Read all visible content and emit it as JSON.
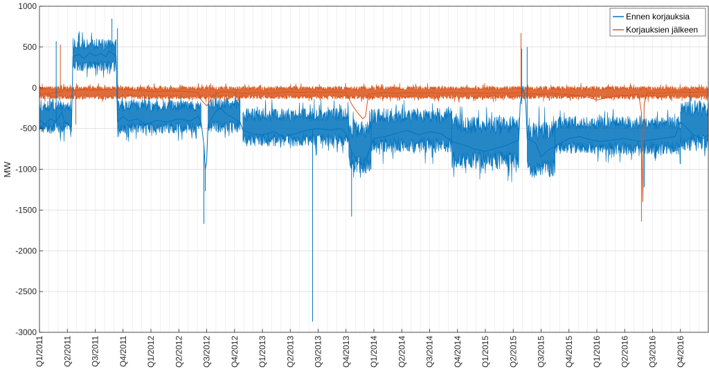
{
  "chart_data": {
    "type": "line",
    "title": "",
    "xlabel": "",
    "ylabel": "MW",
    "ylim": [
      -3000,
      1000
    ],
    "yticks": [
      1000,
      500,
      0,
      -500,
      -1000,
      -1500,
      -2000,
      -2500,
      -3000
    ],
    "xlim": [
      0,
      24
    ],
    "xtick_labels": [
      "Q1/2011",
      "Q2/2011",
      "Q3/2011",
      "Q4/2011",
      "Q1/2012",
      "Q2/2012",
      "Q3/2012",
      "Q4/2012",
      "Q1/2013",
      "Q2/2013",
      "Q3/2013",
      "Q4/2013",
      "Q1/2014",
      "Q2/2014",
      "Q3/2014",
      "Q4/2014",
      "Q1/2015",
      "Q2/2015",
      "Q3/2015",
      "Q4/2015",
      "Q1/2016",
      "Q2/2016",
      "Q3/2016",
      "Q4/2016"
    ],
    "grid": true,
    "legend_position": "top-right",
    "series": [
      {
        "name": "Ennen korjauksia",
        "color": "#0072BD",
        "points": [
          [
            0.0,
            -400
          ],
          [
            0.2,
            -450
          ],
          [
            0.4,
            -380
          ],
          [
            0.6,
            -420
          ],
          [
            0.8,
            -300
          ],
          [
            0.9,
            -420
          ],
          [
            1.15,
            -480
          ],
          [
            1.2,
            380
          ],
          [
            1.4,
            410
          ],
          [
            1.6,
            360
          ],
          [
            1.8,
            430
          ],
          [
            2.0,
            390
          ],
          [
            2.2,
            420
          ],
          [
            2.4,
            380
          ],
          [
            2.5,
            450
          ],
          [
            2.7,
            400
          ],
          [
            2.75,
            390
          ],
          [
            2.8,
            -420
          ],
          [
            3.0,
            -350
          ],
          [
            3.2,
            -410
          ],
          [
            3.5,
            -380
          ],
          [
            3.8,
            -450
          ],
          [
            4.2,
            -400
          ],
          [
            4.6,
            -420
          ],
          [
            5.0,
            -380
          ],
          [
            5.4,
            -410
          ],
          [
            5.7,
            -350
          ],
          [
            5.8,
            -420
          ],
          [
            5.9,
            -700
          ],
          [
            5.95,
            -1000
          ],
          [
            6.0,
            -900
          ],
          [
            6.05,
            -450
          ],
          [
            6.3,
            -300
          ],
          [
            6.5,
            -250
          ],
          [
            6.7,
            -320
          ],
          [
            7.0,
            -380
          ],
          [
            7.2,
            -420
          ],
          [
            7.3,
            -520
          ],
          [
            7.6,
            -560
          ],
          [
            8.0,
            -580
          ],
          [
            8.4,
            -540
          ],
          [
            8.8,
            -600
          ],
          [
            9.2,
            -560
          ],
          [
            9.6,
            -520
          ],
          [
            10.0,
            -500
          ],
          [
            10.4,
            -520
          ],
          [
            10.8,
            -500
          ],
          [
            11.0,
            -560
          ],
          [
            11.2,
            -780
          ],
          [
            11.4,
            -900
          ],
          [
            11.6,
            -950
          ],
          [
            11.8,
            -800
          ],
          [
            12.0,
            -620
          ],
          [
            12.4,
            -600
          ],
          [
            12.8,
            -560
          ],
          [
            13.2,
            -520
          ],
          [
            13.6,
            -580
          ],
          [
            14.0,
            -540
          ],
          [
            14.4,
            -560
          ],
          [
            14.8,
            -660
          ],
          [
            15.2,
            -700
          ],
          [
            15.6,
            -750
          ],
          [
            16.0,
            -780
          ],
          [
            16.4,
            -740
          ],
          [
            16.8,
            -700
          ],
          [
            17.2,
            -640
          ],
          [
            17.25,
            -200
          ],
          [
            17.35,
            20
          ],
          [
            17.45,
            -200
          ],
          [
            17.5,
            -620
          ],
          [
            17.8,
            -680
          ],
          [
            18.0,
            -850
          ],
          [
            18.2,
            -780
          ],
          [
            18.6,
            -700
          ],
          [
            19.0,
            -620
          ],
          [
            19.4,
            -600
          ],
          [
            19.8,
            -640
          ],
          [
            20.1,
            -660
          ],
          [
            20.6,
            -640
          ],
          [
            21.0,
            -620
          ],
          [
            21.5,
            -660
          ],
          [
            21.9,
            -640
          ],
          [
            22.4,
            -620
          ],
          [
            22.8,
            -600
          ],
          [
            23.0,
            -420
          ],
          [
            23.2,
            -480
          ],
          [
            23.4,
            -560
          ],
          [
            23.6,
            -600
          ],
          [
            23.8,
            -620
          ],
          [
            24.0,
            -580
          ]
        ]
      },
      {
        "name": "Korjauksien jälkeen",
        "color": "#D95319",
        "points": [
          [
            0.0,
            -80
          ],
          [
            0.3,
            -70
          ],
          [
            0.6,
            -60
          ],
          [
            0.8,
            -50
          ],
          [
            0.9,
            0
          ],
          [
            1.0,
            -40
          ],
          [
            1.2,
            -30
          ],
          [
            1.6,
            -25
          ],
          [
            2.0,
            -30
          ],
          [
            2.4,
            -20
          ],
          [
            2.8,
            -10
          ],
          [
            3.0,
            -20
          ],
          [
            3.4,
            -30
          ],
          [
            3.8,
            -40
          ],
          [
            4.2,
            -50
          ],
          [
            4.6,
            -40
          ],
          [
            5.0,
            -45
          ],
          [
            5.4,
            -50
          ],
          [
            5.7,
            -60
          ],
          [
            5.8,
            -150
          ],
          [
            6.0,
            -220
          ],
          [
            6.1,
            -180
          ],
          [
            6.2,
            -100
          ],
          [
            6.4,
            -60
          ],
          [
            6.6,
            -50
          ],
          [
            7.0,
            -60
          ],
          [
            7.4,
            -70
          ],
          [
            7.8,
            -60
          ],
          [
            8.2,
            -70
          ],
          [
            8.6,
            -60
          ],
          [
            9.0,
            -50
          ],
          [
            9.4,
            -60
          ],
          [
            9.8,
            -50
          ],
          [
            10.2,
            -60
          ],
          [
            10.6,
            -50
          ],
          [
            11.0,
            -60
          ],
          [
            11.2,
            -200
          ],
          [
            11.4,
            -300
          ],
          [
            11.6,
            -380
          ],
          [
            11.7,
            -350
          ],
          [
            11.8,
            -80
          ],
          [
            12.0,
            -70
          ],
          [
            12.4,
            -60
          ],
          [
            12.8,
            -70
          ],
          [
            13.2,
            -60
          ],
          [
            13.6,
            -70
          ],
          [
            14.0,
            -60
          ],
          [
            14.4,
            -70
          ],
          [
            14.8,
            -60
          ],
          [
            15.2,
            -70
          ],
          [
            15.6,
            -60
          ],
          [
            16.0,
            -70
          ],
          [
            16.4,
            -60
          ],
          [
            16.8,
            -70
          ],
          [
            17.2,
            -60
          ],
          [
            17.5,
            -70
          ],
          [
            18.0,
            -80
          ],
          [
            18.4,
            -70
          ],
          [
            18.8,
            -80
          ],
          [
            19.2,
            -90
          ],
          [
            19.6,
            -110
          ],
          [
            20.0,
            -150
          ],
          [
            20.4,
            -120
          ],
          [
            20.8,
            -100
          ],
          [
            21.2,
            -90
          ],
          [
            21.5,
            -80
          ],
          [
            21.6,
            -300
          ],
          [
            21.65,
            -1400
          ],
          [
            21.7,
            -200
          ],
          [
            21.8,
            -60
          ],
          [
            22.2,
            -70
          ],
          [
            22.6,
            -60
          ],
          [
            23.0,
            -50
          ],
          [
            23.4,
            -60
          ],
          [
            23.8,
            -50
          ],
          [
            24.0,
            -60
          ]
        ]
      }
    ],
    "spikes": [
      {
        "series": 0,
        "x": 0.6,
        "y": 570
      },
      {
        "series": 0,
        "x": 2.6,
        "y": 850
      },
      {
        "series": 0,
        "x": 2.8,
        "y": 730
      },
      {
        "series": 0,
        "x": 5.9,
        "y": -1670
      },
      {
        "series": 0,
        "x": 5.95,
        "y": -1270
      },
      {
        "series": 0,
        "x": 9.8,
        "y": -2870
      },
      {
        "series": 0,
        "x": 11.2,
        "y": -1580
      },
      {
        "series": 0,
        "x": 17.3,
        "y": 480
      },
      {
        "series": 0,
        "x": 17.5,
        "y": 500
      },
      {
        "series": 0,
        "x": 21.7,
        "y": -1220
      },
      {
        "series": 1,
        "x": 0.75,
        "y": 530
      },
      {
        "series": 1,
        "x": 1.3,
        "y": -450
      },
      {
        "series": 1,
        "x": 17.28,
        "y": 670
      },
      {
        "series": 1,
        "x": 21.6,
        "y": -1640
      }
    ],
    "bands": [
      {
        "series": 0,
        "x0": 0.0,
        "x1": 1.15,
        "lo": -560,
        "hi": -150
      },
      {
        "series": 0,
        "x0": 1.2,
        "x1": 2.75,
        "lo": 200,
        "hi": 600
      },
      {
        "series": 0,
        "x0": 2.8,
        "x1": 5.8,
        "lo": -560,
        "hi": -150
      },
      {
        "series": 0,
        "x0": 6.05,
        "x1": 7.2,
        "lo": -550,
        "hi": -120
      },
      {
        "series": 0,
        "x0": 7.3,
        "x1": 11.1,
        "lo": -720,
        "hi": -250
      },
      {
        "series": 0,
        "x0": 11.1,
        "x1": 11.9,
        "lo": -1050,
        "hi": -400
      },
      {
        "series": 0,
        "x0": 11.9,
        "x1": 14.8,
        "lo": -800,
        "hi": -250
      },
      {
        "series": 0,
        "x0": 14.8,
        "x1": 17.2,
        "lo": -1000,
        "hi": -350
      },
      {
        "series": 0,
        "x0": 17.5,
        "x1": 18.5,
        "lo": -1100,
        "hi": -400
      },
      {
        "series": 0,
        "x0": 18.5,
        "x1": 23.0,
        "lo": -820,
        "hi": -350
      },
      {
        "series": 0,
        "x0": 23.0,
        "x1": 24.0,
        "lo": -780,
        "hi": -150
      },
      {
        "series": 1,
        "x0": 0.0,
        "x1": 24.0,
        "lo": -140,
        "hi": 20
      }
    ]
  }
}
